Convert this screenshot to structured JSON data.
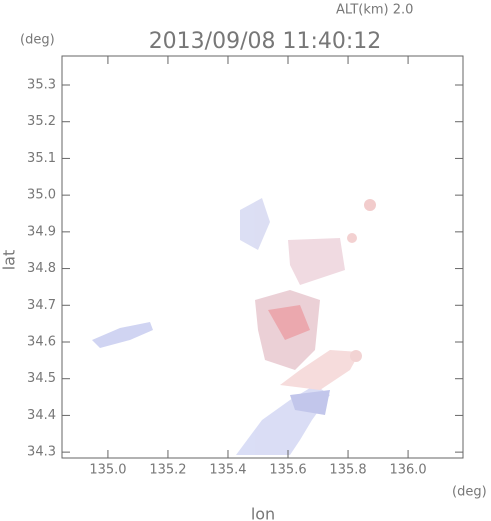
{
  "chart_data": {
    "type": "map",
    "title": "2013/09/08 11:40:12",
    "annotation": "ALT(km) 2.0",
    "xlabel": "lon",
    "ylabel": "lat",
    "x_unit": "(deg)",
    "y_unit": "(deg)",
    "xlim": [
      134.847,
      136.183
    ],
    "ylim": [
      34.284,
      35.379
    ],
    "xticks": [
      {
        "value": 135.0,
        "label": "135.0"
      },
      135.2,
      135.4,
      135.6,
      135.8,
      {
        "value": 136.0,
        "label": "136.0"
      }
    ],
    "yticks": [
      34.3,
      34.4,
      34.5,
      34.6,
      34.7,
      34.8,
      34.9,
      {
        "value": 35.0,
        "label": "35.0"
      },
      35.1,
      35.2,
      35.3
    ]
  }
}
